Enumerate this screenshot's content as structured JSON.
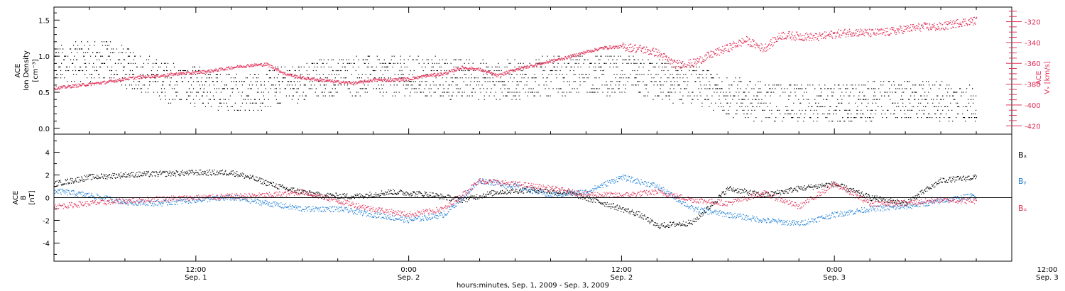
{
  "colors": {
    "axis": "#000000",
    "density": "#000000",
    "vx": "#e0325a",
    "bx": "#000000",
    "by": "#1f7fd6",
    "bz": "#e0325a"
  },
  "xaxis": {
    "label": "hours:minutes, Sep.  1, 2009 - Sep.  3, 2009",
    "range_hours": [
      4.0,
      58.0
    ],
    "ticks": [
      {
        "hours": 12,
        "time": "12:00",
        "day": "Sep. 1"
      },
      {
        "hours": 24,
        "time": "0:00",
        "day": "Sep. 2"
      },
      {
        "hours": 36,
        "time": "12:00",
        "day": "Sep. 2"
      },
      {
        "hours": 48,
        "time": "0:00",
        "day": "Sep. 3"
      },
      {
        "hours": 60,
        "time": "12:00",
        "day": "Sep. 3"
      }
    ]
  },
  "chart_data": [
    {
      "type": "scatter",
      "panel": "top",
      "ylabel_left": [
        "ACE",
        "Ion Density",
        "[cm⁻³]"
      ],
      "ylabel_right": [
        "ACE",
        "Vₓ [km/s]"
      ],
      "ylim_left": [
        -0.08,
        1.68
      ],
      "yticks_left": [
        0.0,
        0.5,
        1.0,
        1.5
      ],
      "ylim_right": [
        -428,
        -306
      ],
      "yticks_right": [
        -420,
        -400,
        -380,
        -360,
        -340,
        -320
      ],
      "series": [
        {
          "key": "density",
          "x": [
            4,
            7,
            9,
            11,
            13,
            15,
            16,
            19,
            22,
            26,
            29,
            31,
            34,
            37,
            40,
            43,
            46,
            49,
            52,
            55,
            56
          ],
          "y": [
            0.9,
            0.95,
            0.75,
            0.6,
            0.55,
            0.5,
            0.55,
            0.7,
            0.75,
            0.7,
            0.65,
            0.7,
            0.75,
            0.7,
            0.6,
            0.4,
            0.35,
            0.35,
            0.4,
            0.35,
            0.35
          ]
        },
        {
          "key": "vx",
          "x": [
            4,
            5,
            6,
            7,
            8,
            9,
            10,
            11,
            12,
            13,
            14,
            15,
            16,
            17,
            18,
            19,
            20,
            21,
            22,
            23,
            24,
            25,
            26,
            27,
            28,
            29,
            30,
            31,
            32,
            33,
            34,
            35,
            36,
            37,
            38,
            39,
            40,
            41,
            42,
            43,
            44,
            45,
            46,
            47,
            48,
            49,
            50,
            51,
            52,
            53,
            54,
            55,
            56
          ],
          "y": [
            -384,
            -382,
            -380,
            -378,
            -375,
            -373,
            -372,
            -370,
            -369,
            -367,
            -364,
            -362,
            -361,
            -370,
            -374,
            -376,
            -378,
            -379,
            -376,
            -376,
            -375,
            -372,
            -370,
            -364,
            -366,
            -372,
            -366,
            -362,
            -358,
            -354,
            -349,
            -345,
            -344,
            -346,
            -350,
            -361,
            -360,
            -352,
            -345,
            -338,
            -346,
            -333,
            -334,
            -335,
            -332,
            -330,
            -331,
            -330,
            -327,
            -325,
            -325,
            -321,
            -319
          ]
        }
      ]
    },
    {
      "type": "scatter",
      "panel": "bottom",
      "ylabel": [
        "ACE",
        "B",
        "[nT]"
      ],
      "ylim": [
        -5.6,
        5.6
      ],
      "yticks": [
        -4,
        -2,
        0,
        2,
        4
      ],
      "zero_line": true,
      "legend": [
        "Bₓ",
        "Bᵧ",
        "Bᵤ"
      ],
      "series": [
        {
          "key": "bx",
          "x": [
            4,
            6,
            8,
            10,
            12,
            14,
            15,
            17,
            19,
            21,
            23,
            25,
            27,
            29,
            31,
            33,
            35,
            37,
            38,
            40,
            42,
            44,
            46,
            48,
            50,
            52,
            54,
            56
          ],
          "y": [
            1.2,
            1.8,
            2.0,
            2.1,
            2.2,
            2.2,
            1.8,
            0.8,
            0.2,
            0.1,
            0.5,
            0.3,
            -0.2,
            0.5,
            0.7,
            0.4,
            -0.5,
            -1.5,
            -2.5,
            -2.2,
            0.8,
            0.2,
            0.8,
            1.2,
            0.0,
            -0.5,
            1.5,
            1.8
          ]
        },
        {
          "key": "by",
          "x": [
            4,
            6,
            8,
            10,
            12,
            14,
            16,
            18,
            20,
            22,
            24,
            26,
            28,
            30,
            32,
            34,
            36,
            38,
            40,
            42,
            44,
            46,
            48,
            50,
            52,
            54,
            56
          ],
          "y": [
            0.6,
            0.2,
            -0.4,
            -0.5,
            -0.2,
            0.0,
            -0.5,
            -1.0,
            -1.0,
            -1.5,
            -2.0,
            -1.5,
            1.5,
            1.0,
            0.2,
            0.5,
            1.8,
            1.0,
            -1.0,
            -1.5,
            -2.0,
            -2.3,
            -1.5,
            -1.0,
            -0.8,
            -0.3,
            0.2
          ]
        },
        {
          "key": "bz",
          "x": [
            4,
            6,
            8,
            10,
            12,
            14,
            16,
            18,
            20,
            22,
            24,
            26,
            28,
            30,
            32,
            34,
            36,
            38,
            40,
            42,
            44,
            46,
            48,
            50,
            52,
            54,
            56
          ],
          "y": [
            -0.8,
            -0.5,
            -0.3,
            -0.1,
            0.0,
            0.1,
            0.2,
            0.5,
            -0.3,
            -1.0,
            -1.5,
            -1.0,
            1.5,
            1.2,
            0.8,
            0.3,
            0.2,
            0.5,
            -0.2,
            -0.5,
            0.4,
            -0.8,
            1.2,
            -0.5,
            -0.5,
            -0.2,
            -0.3
          ]
        }
      ]
    }
  ]
}
